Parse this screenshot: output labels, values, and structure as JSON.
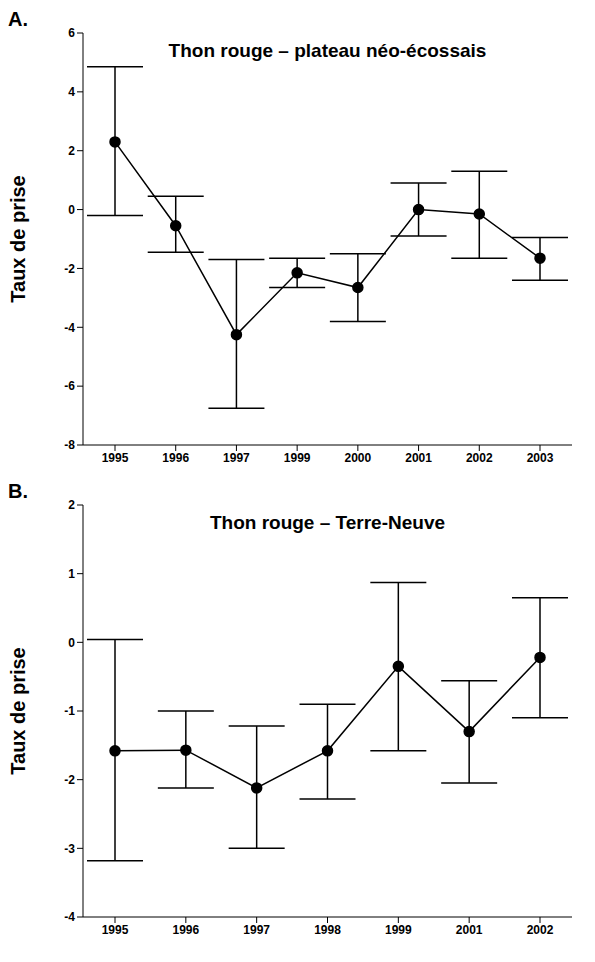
{
  "chart_data": [
    {
      "type": "line",
      "label": "A.",
      "title": "Thon rouge – plateau néo-écossais",
      "y_label": "Taux de prise",
      "categories": [
        "1995",
        "1996",
        "1997",
        "1999",
        "2000",
        "2001",
        "2002",
        "2003"
      ],
      "values": [
        2.3,
        -0.55,
        -4.25,
        -2.15,
        -2.65,
        0.0,
        -0.15,
        -1.65
      ],
      "ci_low": [
        -0.2,
        -1.45,
        -6.75,
        -2.65,
        -3.8,
        -0.9,
        -1.65,
        -2.4
      ],
      "ci_high": [
        4.85,
        0.45,
        -1.7,
        -1.65,
        -1.5,
        0.9,
        1.3,
        -0.95
      ],
      "color": "#000000",
      "marker": "circle",
      "grid": false,
      "ylim": [
        -8,
        6
      ],
      "yticks": [
        -8,
        -6,
        -4,
        -2,
        0,
        2,
        4,
        6
      ]
    },
    {
      "type": "line",
      "label": "B.",
      "title": "Thon rouge – Terre-Neuve",
      "y_label": "Taux de prise",
      "categories": [
        "1995",
        "1996",
        "1997",
        "1998",
        "1999",
        "2001",
        "2002"
      ],
      "values": [
        -1.58,
        -1.57,
        -2.12,
        -1.58,
        -0.35,
        -1.3,
        -0.22
      ],
      "ci_low": [
        -3.18,
        -2.12,
        -3.0,
        -2.28,
        -1.58,
        -2.05,
        -1.1
      ],
      "ci_high": [
        0.04,
        -1.0,
        -1.22,
        -0.9,
        0.87,
        -0.56,
        0.65
      ],
      "color": "#000000",
      "marker": "circle",
      "grid": false,
      "ylim": [
        -4,
        2
      ],
      "yticks": [
        -4,
        -3,
        -2,
        -1,
        0,
        1,
        2
      ]
    }
  ]
}
